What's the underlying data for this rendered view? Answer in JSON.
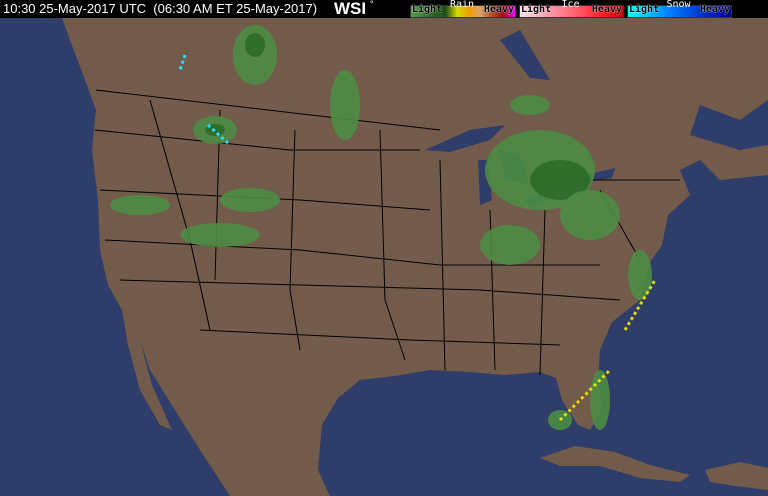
{
  "header": {
    "timestamp": "10:30 25-May-2017 UTC  (06:30 AM ET 25-May-2017)",
    "logo": "WSI"
  },
  "legend": [
    {
      "name": "Rain",
      "light": "Light",
      "heavy": "Heavy",
      "gradient": [
        "#5a9a50",
        "#3f7f3a",
        "#2a6624",
        "#1d4f18",
        "#d9d900",
        "#f0a000",
        "#e0a070",
        "#b05020",
        "#a01010",
        "#ff00ff"
      ]
    },
    {
      "name": "Ice",
      "light": "Light",
      "heavy": "Heavy",
      "gradient": [
        "#ffe0e8",
        "#ffb0c0",
        "#ff8090",
        "#ff5060",
        "#ff2020",
        "#d00000"
      ]
    },
    {
      "name": "Snow",
      "light": "Light",
      "heavy": "Heavy",
      "gradient": [
        "#00ffff",
        "#00c0ff",
        "#0080ff",
        "#0050e0",
        "#0020c0",
        "#000090"
      ]
    }
  ],
  "colors": {
    "ocean": "#2e3d69",
    "land": "#735b4b",
    "border": "#000000",
    "radar_light": "#4c8c44",
    "radar_dark": "#2b6a28",
    "radar_yellow": "#e6d800",
    "radar_snow": "#22e0ff"
  }
}
